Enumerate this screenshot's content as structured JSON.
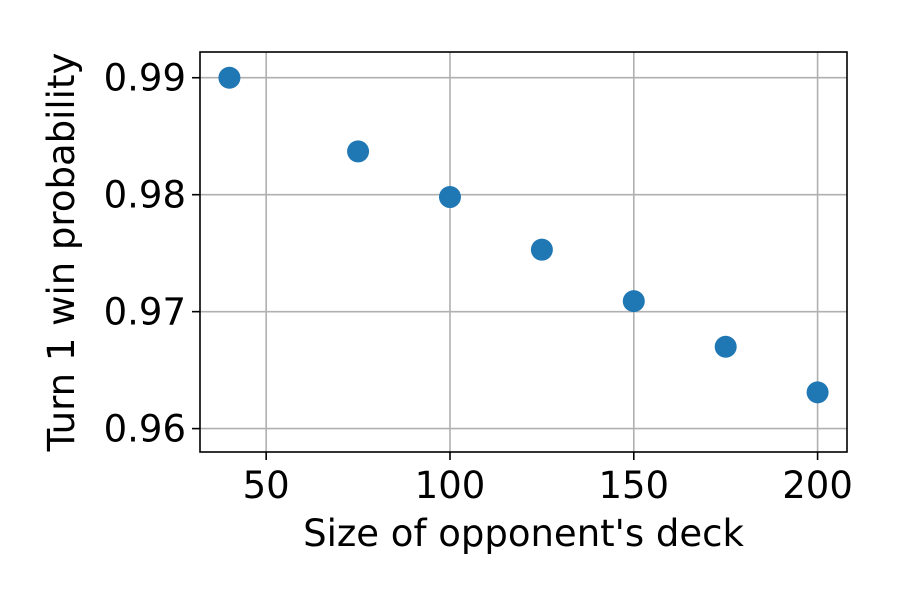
{
  "chart_data": {
    "type": "scatter",
    "title": "",
    "xlabel": "Size of opponent's deck",
    "ylabel": "Turn 1 win probability",
    "xlim": [
      32,
      208
    ],
    "ylim": [
      0.958,
      0.9922
    ],
    "x_ticks": [
      50,
      100,
      150,
      200
    ],
    "x_tick_labels": [
      "50",
      "100",
      "150",
      "200"
    ],
    "y_ticks": [
      0.96,
      0.97,
      0.98,
      0.99
    ],
    "y_tick_labels": [
      "0.96",
      "0.97",
      "0.98",
      "0.99"
    ],
    "grid": true,
    "legend": "none",
    "marker_color": "#1f77b4",
    "series": [
      {
        "x": [
          40,
          75,
          100,
          125,
          150,
          175,
          200
        ],
        "y": [
          0.99,
          0.9837,
          0.9798,
          0.9753,
          0.9709,
          0.967,
          0.9631
        ]
      }
    ]
  }
}
